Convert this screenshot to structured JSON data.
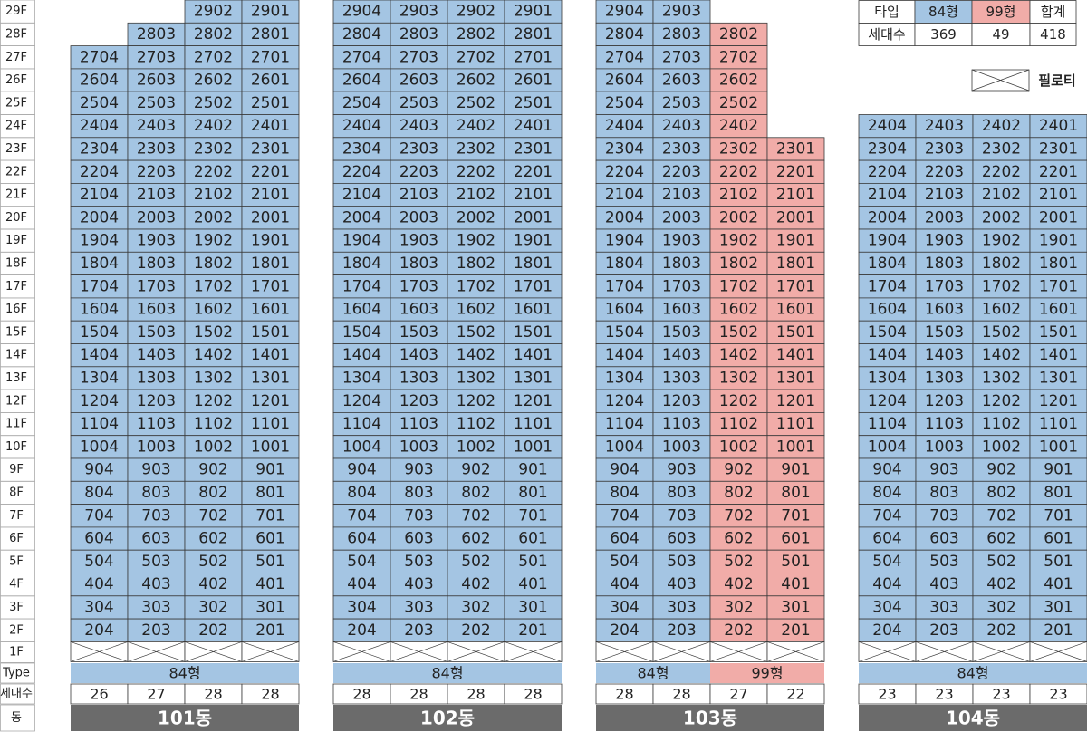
{
  "floors": [
    "29F",
    "28F",
    "27F",
    "26F",
    "25F",
    "24F",
    "23F",
    "22F",
    "21F",
    "20F",
    "19F",
    "18F",
    "17F",
    "16F",
    "15F",
    "14F",
    "13F",
    "12F",
    "11F",
    "10F",
    "9F",
    "8F",
    "7F",
    "6F",
    "5F",
    "4F",
    "3F",
    "2F",
    "1F"
  ],
  "footer_labels": [
    "Type",
    "세대수",
    "동"
  ],
  "legend": {
    "header": "타입",
    "count_label": "세대수",
    "total_label": "합계",
    "total": 418,
    "pilotis": "필로티",
    "types": [
      {
        "label": "84형",
        "color": "#a4c5e3",
        "count": 369
      },
      {
        "label": "99형",
        "color": "#f1aca8",
        "count": 49
      }
    ]
  },
  "buildings": [
    {
      "name": "101동",
      "type_row": [
        {
          "label": "84형",
          "span": 4
        }
      ],
      "counts": [
        26,
        27,
        28,
        28
      ],
      "rows": [
        [
          null,
          null,
          2902,
          2901
        ],
        [
          null,
          2803,
          2802,
          2801
        ],
        [
          2704,
          2703,
          2702,
          2701
        ],
        [
          2604,
          2603,
          2602,
          2601
        ],
        [
          2504,
          2503,
          2502,
          2501
        ],
        [
          2404,
          2403,
          2402,
          2401
        ],
        [
          2304,
          2303,
          2302,
          2301
        ],
        [
          2204,
          2203,
          2202,
          2201
        ],
        [
          2104,
          2103,
          2102,
          2101
        ],
        [
          2004,
          2003,
          2002,
          2001
        ],
        [
          1904,
          1903,
          1902,
          1901
        ],
        [
          1804,
          1803,
          1802,
          1801
        ],
        [
          1704,
          1703,
          1702,
          1701
        ],
        [
          1604,
          1603,
          1602,
          1601
        ],
        [
          1504,
          1503,
          1502,
          1501
        ],
        [
          1404,
          1403,
          1402,
          1401
        ],
        [
          1304,
          1303,
          1302,
          1301
        ],
        [
          1204,
          1203,
          1202,
          1201
        ],
        [
          1104,
          1103,
          1102,
          1101
        ],
        [
          1004,
          1003,
          1002,
          1001
        ],
        [
          904,
          903,
          902,
          901
        ],
        [
          804,
          803,
          802,
          801
        ],
        [
          704,
          703,
          702,
          701
        ],
        [
          604,
          603,
          602,
          601
        ],
        [
          504,
          503,
          502,
          501
        ],
        [
          404,
          403,
          402,
          401
        ],
        [
          304,
          303,
          302,
          301
        ],
        [
          204,
          203,
          202,
          201
        ]
      ]
    },
    {
      "name": "102동",
      "type_row": [
        {
          "label": "84형",
          "span": 4
        }
      ],
      "counts": [
        28,
        28,
        28,
        28
      ],
      "rows": [
        [
          2904,
          2903,
          2902,
          2901
        ],
        [
          2804,
          2803,
          2802,
          2801
        ],
        [
          2704,
          2703,
          2702,
          2701
        ],
        [
          2604,
          2603,
          2602,
          2601
        ],
        [
          2504,
          2503,
          2502,
          2501
        ],
        [
          2404,
          2403,
          2402,
          2401
        ],
        [
          2304,
          2303,
          2302,
          2301
        ],
        [
          2204,
          2203,
          2202,
          2201
        ],
        [
          2104,
          2103,
          2102,
          2101
        ],
        [
          2004,
          2003,
          2002,
          2001
        ],
        [
          1904,
          1903,
          1902,
          1901
        ],
        [
          1804,
          1803,
          1802,
          1801
        ],
        [
          1704,
          1703,
          1702,
          1701
        ],
        [
          1604,
          1603,
          1602,
          1601
        ],
        [
          1504,
          1503,
          1502,
          1501
        ],
        [
          1404,
          1403,
          1402,
          1401
        ],
        [
          1304,
          1303,
          1302,
          1301
        ],
        [
          1204,
          1203,
          1202,
          1201
        ],
        [
          1104,
          1103,
          1102,
          1101
        ],
        [
          1004,
          1003,
          1002,
          1001
        ],
        [
          904,
          903,
          902,
          901
        ],
        [
          804,
          803,
          802,
          801
        ],
        [
          704,
          703,
          702,
          701
        ],
        [
          604,
          603,
          602,
          601
        ],
        [
          504,
          503,
          502,
          501
        ],
        [
          404,
          403,
          402,
          401
        ],
        [
          304,
          303,
          302,
          301
        ],
        [
          204,
          203,
          202,
          201
        ]
      ]
    },
    {
      "name": "103동",
      "type_row": [
        {
          "label": "84형",
          "span": 2
        },
        {
          "label": "99형",
          "span": 2
        }
      ],
      "counts": [
        28,
        28,
        27,
        22
      ],
      "rows": [
        [
          2904,
          2903,
          null,
          null
        ],
        [
          2804,
          2803,
          2802,
          null
        ],
        [
          2704,
          2703,
          2702,
          null
        ],
        [
          2604,
          2603,
          2602,
          null
        ],
        [
          2504,
          2503,
          2502,
          null
        ],
        [
          2404,
          2403,
          2402,
          null
        ],
        [
          2304,
          2303,
          2302,
          2301
        ],
        [
          2204,
          2203,
          2202,
          2201
        ],
        [
          2104,
          2103,
          2102,
          2101
        ],
        [
          2004,
          2003,
          2002,
          2001
        ],
        [
          1904,
          1903,
          1902,
          1901
        ],
        [
          1804,
          1803,
          1802,
          1801
        ],
        [
          1704,
          1703,
          1702,
          1701
        ],
        [
          1604,
          1603,
          1602,
          1601
        ],
        [
          1504,
          1503,
          1502,
          1501
        ],
        [
          1404,
          1403,
          1402,
          1401
        ],
        [
          1304,
          1303,
          1302,
          1301
        ],
        [
          1204,
          1203,
          1202,
          1201
        ],
        [
          1104,
          1103,
          1102,
          1101
        ],
        [
          1004,
          1003,
          1002,
          1001
        ],
        [
          904,
          903,
          902,
          901
        ],
        [
          804,
          803,
          802,
          801
        ],
        [
          704,
          703,
          702,
          701
        ],
        [
          604,
          603,
          602,
          601
        ],
        [
          504,
          503,
          502,
          501
        ],
        [
          404,
          403,
          402,
          401
        ],
        [
          304,
          303,
          302,
          301
        ],
        [
          204,
          203,
          202,
          201
        ]
      ]
    },
    {
      "name": "104동",
      "type_row": [
        {
          "label": "84형",
          "span": 4
        }
      ],
      "counts": [
        23,
        23,
        23,
        23
      ],
      "rows": [
        [
          null,
          null,
          null,
          null
        ],
        [
          null,
          null,
          null,
          null
        ],
        [
          null,
          null,
          null,
          null
        ],
        [
          null,
          null,
          null,
          null
        ],
        [
          null,
          null,
          null,
          null
        ],
        [
          2404,
          2403,
          2402,
          2401
        ],
        [
          2304,
          2303,
          2302,
          2301
        ],
        [
          2204,
          2203,
          2202,
          2201
        ],
        [
          2104,
          2103,
          2102,
          2101
        ],
        [
          2004,
          2003,
          2002,
          2001
        ],
        [
          1904,
          1903,
          1902,
          1901
        ],
        [
          1804,
          1803,
          1802,
          1801
        ],
        [
          1704,
          1703,
          1702,
          1701
        ],
        [
          1604,
          1603,
          1602,
          1601
        ],
        [
          1504,
          1503,
          1502,
          1501
        ],
        [
          1404,
          1403,
          1402,
          1401
        ],
        [
          1304,
          1303,
          1302,
          1301
        ],
        [
          1204,
          1203,
          1202,
          1201
        ],
        [
          1104,
          1103,
          1102,
          1101
        ],
        [
          1004,
          1003,
          1002,
          1001
        ],
        [
          904,
          903,
          902,
          901
        ],
        [
          804,
          803,
          802,
          801
        ],
        [
          704,
          703,
          702,
          701
        ],
        [
          604,
          603,
          602,
          601
        ],
        [
          504,
          503,
          502,
          501
        ],
        [
          404,
          403,
          402,
          401
        ],
        [
          304,
          303,
          302,
          301
        ],
        [
          204,
          203,
          202,
          201
        ]
      ]
    }
  ]
}
